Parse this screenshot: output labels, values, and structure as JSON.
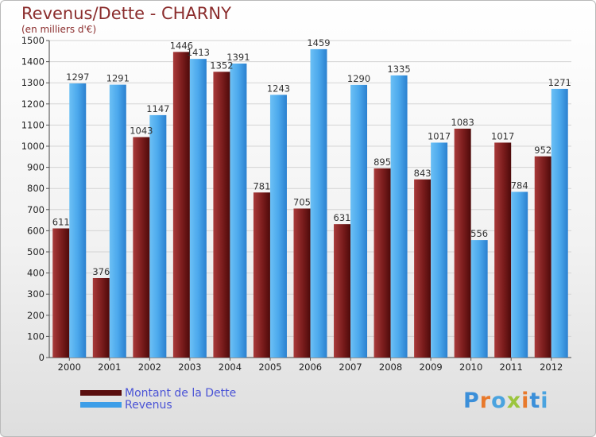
{
  "header": {
    "title": "Revenus/Dette - CHARNY",
    "subtitle": "(en milliers d'€)"
  },
  "chart_data": {
    "type": "bar",
    "title": "Revenus/Dette - CHARNY",
    "ylabel": "(en milliers d'€)",
    "categories": [
      "2000",
      "2001",
      "2002",
      "2003",
      "2004",
      "2005",
      "2006",
      "2007",
      "2008",
      "2009",
      "2010",
      "2011",
      "2012"
    ],
    "series": [
      {
        "name": "Montant de la Dette",
        "color": "#7a1c1c",
        "values": [
          611,
          376,
          1043,
          1446,
          1352,
          781,
          705,
          631,
          895,
          843,
          1083,
          1017,
          952
        ]
      },
      {
        "name": "Revenus",
        "color": "#3d9ee8",
        "values": [
          1297,
          1291,
          1147,
          1413,
          1391,
          1243,
          1459,
          1290,
          1335,
          1017,
          556,
          784,
          1271
        ]
      }
    ],
    "ylim": [
      0,
      1500
    ],
    "yticks": [
      0,
      100,
      200,
      300,
      400,
      500,
      600,
      700,
      800,
      900,
      1000,
      1100,
      1200,
      1300,
      1400,
      1500
    ],
    "grid": true,
    "legend_position": "bottom-left"
  },
  "legend": [
    {
      "label": "Montant de la Dette",
      "color": "#5a0e0e"
    },
    {
      "label": "Revenus",
      "color": "#3d9ee8"
    }
  ],
  "logo": {
    "text": "Proxiti",
    "letter_colors": [
      "#3b8fd9",
      "#e8792b",
      "#4aa3df",
      "#9bc53d",
      "#e8792b",
      "#3b8fd9",
      "#4aa3df"
    ]
  }
}
